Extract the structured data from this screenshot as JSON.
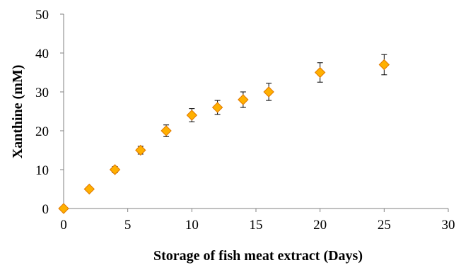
{
  "chart_data": {
    "type": "scatter",
    "title": "",
    "xlabel": "Storage of fish meat extract (Days)",
    "ylabel": "Xanthine (mM)",
    "xlim": [
      0,
      30
    ],
    "ylim": [
      0,
      50
    ],
    "xticks": [
      0,
      5,
      10,
      15,
      20,
      25,
      30
    ],
    "yticks": [
      0,
      10,
      20,
      30,
      40,
      50
    ],
    "grid": false,
    "legend": "none",
    "marker": "diamond",
    "colors": {
      "marker_fill": "#FFB000",
      "marker_edge": "#E07800",
      "error_bar": "#000000",
      "axis": "#808080"
    },
    "series": [
      {
        "x": [
          0,
          2,
          4,
          6,
          8,
          10,
          12,
          14,
          16,
          20,
          25
        ],
        "y": [
          0,
          5,
          10,
          15,
          20,
          24,
          26,
          28,
          30,
          35,
          37
        ],
        "error": [
          0,
          0,
          0.8,
          1.0,
          1.5,
          1.7,
          1.8,
          2.0,
          2.2,
          2.5,
          2.6
        ]
      }
    ]
  }
}
